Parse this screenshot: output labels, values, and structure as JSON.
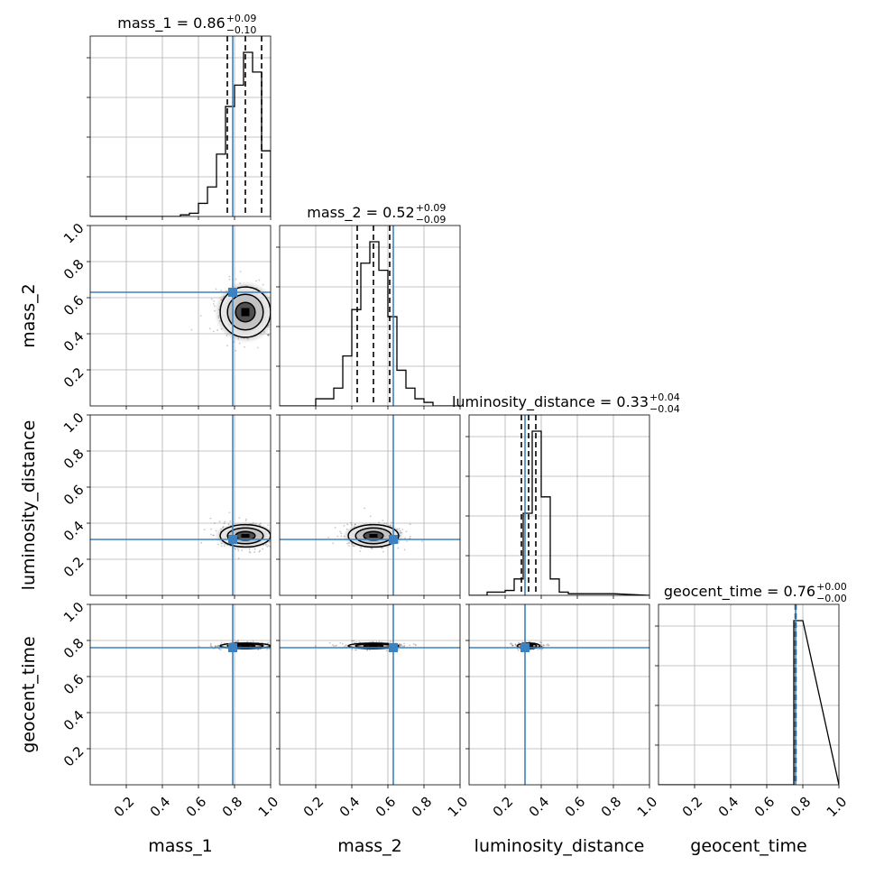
{
  "colors": {
    "truth": "#3d82c0",
    "hist": "#000000",
    "quantile": "#000000",
    "grid": "#b0b0b0",
    "density": "#000000"
  },
  "chart_data": {
    "type": "corner",
    "grid": true,
    "parameters": [
      "mass_1",
      "mass_2",
      "luminosity_distance",
      "geocent_time"
    ],
    "axis_range": [
      0,
      1
    ],
    "tick_values": [
      0.2,
      0.4,
      0.6,
      0.8,
      1.0
    ],
    "tick_labels": [
      "0.2",
      "0.4",
      "0.6",
      "0.8",
      "1.0"
    ],
    "truths": {
      "mass_1": 0.79,
      "mass_2": 0.63,
      "luminosity_distance": 0.31,
      "geocent_time": 0.76
    },
    "titles": [
      {
        "param": "mass_1",
        "prefix": "mass_1 = ",
        "median": "0.86",
        "plus": "+0.09",
        "minus": "−0.10"
      },
      {
        "param": "mass_2",
        "prefix": "mass_2 = ",
        "median": "0.52",
        "plus": "+0.09",
        "minus": "−0.09"
      },
      {
        "param": "luminosity_distance",
        "prefix": "luminosity_distance = ",
        "median": "0.33",
        "plus": "+0.04",
        "minus": "−0.04"
      },
      {
        "param": "geocent_time",
        "prefix": "geocent_time = ",
        "median": "0.76",
        "plus": "+0.00",
        "minus": "−0.00"
      }
    ],
    "marginals": {
      "mass_1": {
        "bin_edges": [
          0.3,
          0.35,
          0.4,
          0.45,
          0.5,
          0.55,
          0.6,
          0.65,
          0.7,
          0.75,
          0.8,
          0.85,
          0.9,
          0.95,
          1.0
        ],
        "counts": [
          0,
          0,
          0,
          0,
          1,
          2,
          8,
          18,
          38,
          67,
          80,
          100,
          88,
          40
        ],
        "quantiles": [
          0.76,
          0.86,
          0.95
        ]
      },
      "mass_2": {
        "bin_edges": [
          0.2,
          0.25,
          0.3,
          0.35,
          0.4,
          0.45,
          0.5,
          0.55,
          0.6,
          0.65,
          0.7,
          0.75,
          0.8,
          0.85,
          0.9
        ],
        "counts": [
          4,
          4,
          10,
          28,
          54,
          80,
          92,
          76,
          50,
          20,
          10,
          4,
          2,
          0
        ],
        "quantiles": [
          0.43,
          0.52,
          0.61
        ]
      },
      "luminosity_distance": {
        "bin_edges": [
          0.1,
          0.15,
          0.2,
          0.25,
          0.3,
          0.35,
          0.4,
          0.45,
          0.5,
          0.55,
          0.6,
          0.65,
          0.7,
          0.75,
          0.8
        ],
        "counts": [
          2,
          2,
          3,
          10,
          50,
          100,
          60,
          10,
          2,
          1,
          1,
          1,
          1,
          1
        ],
        "quantiles": [
          0.29,
          0.33,
          0.37
        ]
      },
      "geocent_time": {
        "bin_edges": [
          0.7,
          0.75,
          0.8
        ],
        "counts": [
          0,
          100
        ],
        "quantiles": [
          0.758,
          0.76,
          0.762
        ]
      }
    },
    "pairs": [
      {
        "x": "mass_1",
        "y": "mass_2",
        "center": [
          0.86,
          0.52
        ],
        "sigma": [
          0.09,
          0.09
        ]
      },
      {
        "x": "mass_1",
        "y": "luminosity_distance",
        "center": [
          0.86,
          0.33
        ],
        "sigma": [
          0.09,
          0.04
        ]
      },
      {
        "x": "mass_2",
        "y": "luminosity_distance",
        "center": [
          0.52,
          0.33
        ],
        "sigma": [
          0.09,
          0.04
        ]
      },
      {
        "x": "mass_1",
        "y": "geocent_time",
        "center": [
          0.86,
          0.77
        ],
        "sigma": [
          0.09,
          0.01
        ]
      },
      {
        "x": "mass_2",
        "y": "geocent_time",
        "center": [
          0.52,
          0.77
        ],
        "sigma": [
          0.09,
          0.01
        ]
      },
      {
        "x": "luminosity_distance",
        "y": "geocent_time",
        "center": [
          0.33,
          0.77
        ],
        "sigma": [
          0.04,
          0.01
        ]
      }
    ]
  }
}
